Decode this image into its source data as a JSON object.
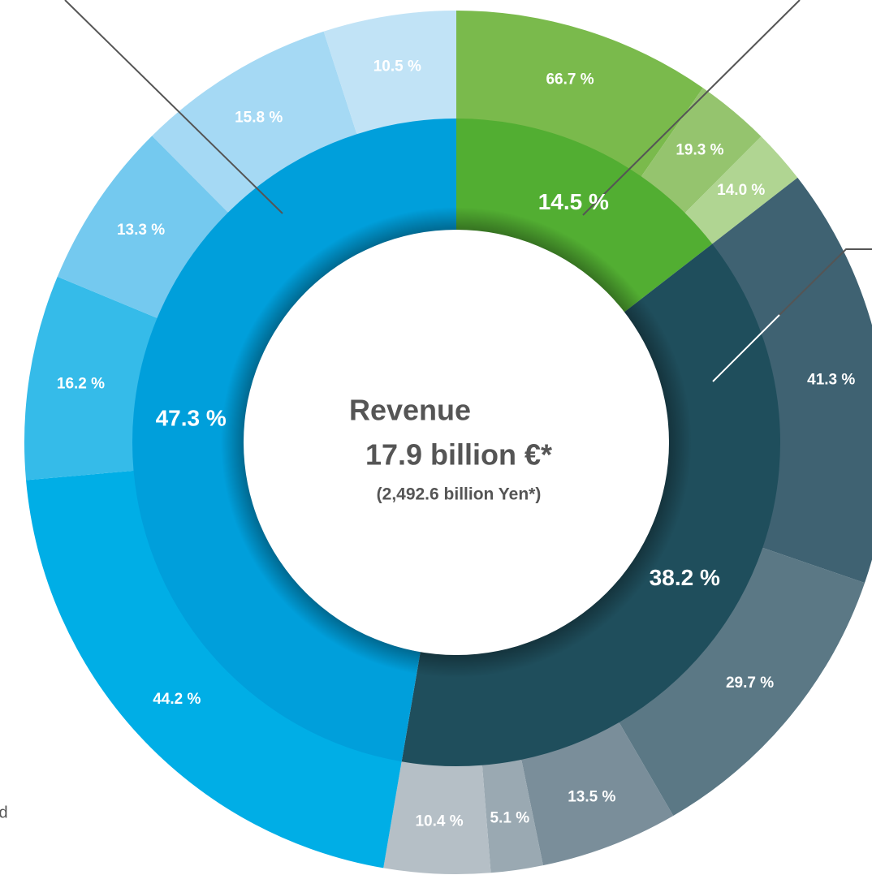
{
  "chart_data": {
    "type": "nested-donut",
    "center": [
      "Revenue",
      "17.9 billion €*",
      "(2,492.6 billion Yen*)"
    ],
    "annotations": [
      "d"
    ],
    "inner": {
      "values": [
        14.5,
        38.2,
        47.3
      ],
      "value_labels": [
        "14.5 %",
        "38.2 %",
        "47.3 %"
      ],
      "colors": [
        "#52ae32",
        "#1f4e5c",
        "#009fdb"
      ]
    },
    "outer": [
      {
        "values": [
          66.7,
          19.3,
          14.0
        ],
        "value_labels": [
          "66.7 %",
          "19.3 %",
          "14.0 %"
        ],
        "colors": [
          "#7aba4c",
          "#95c46e",
          "#b0d592"
        ]
      },
      {
        "values": [
          41.3,
          29.7,
          13.5,
          5.1,
          10.4
        ],
        "value_labels": [
          "41.3 %",
          "29.7 %",
          "13.5 %",
          "5.1 %",
          "10.4 %"
        ],
        "colors": [
          "#3f6272",
          "#5b7885",
          "#7a8e9a",
          "#9aa9b2",
          "#b5bfc6"
        ]
      },
      {
        "values": [
          44.2,
          16.2,
          13.3,
          15.8,
          10.5
        ],
        "value_labels": [
          "44.2 %",
          "16.2 %",
          "13.3 %",
          "15.8 %",
          "10.5 %"
        ],
        "colors": [
          "#00aee6",
          "#35bbe9",
          "#74c9ef",
          "#a5d9f4",
          "#c1e3f6"
        ]
      }
    ]
  }
}
